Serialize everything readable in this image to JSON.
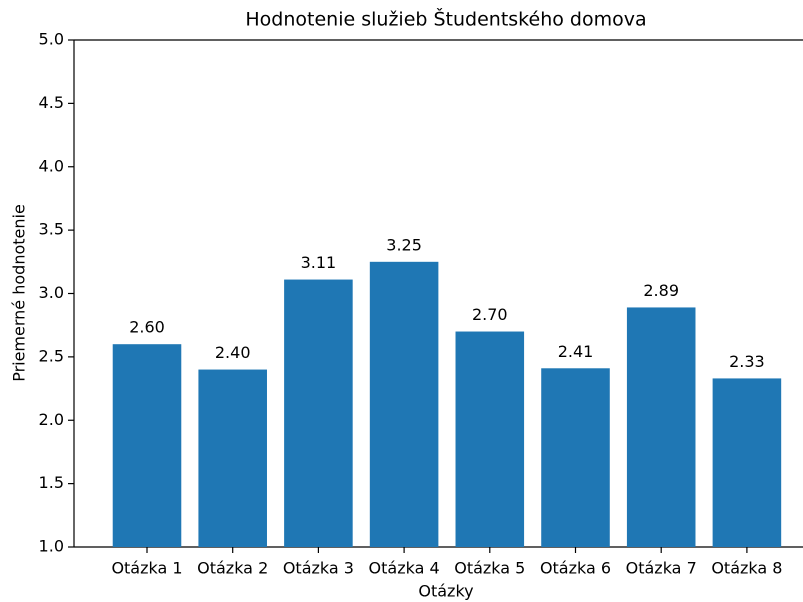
{
  "chart_data": {
    "type": "bar",
    "title": "Hodnotenie služieb Študentského domova",
    "x_label": "Otázky",
    "y_label": "Priemerné hodnotenie",
    "categories": [
      "Otázka 1",
      "Otázka 2",
      "Otázka 3",
      "Otázka 4",
      "Otázka 5",
      "Otázka 6",
      "Otázka 7",
      "Otázka 8"
    ],
    "values": [
      2.6,
      2.4,
      3.11,
      3.25,
      2.7,
      2.41,
      2.89,
      2.33
    ],
    "value_labels": [
      "2.60",
      "2.40",
      "3.11",
      "3.25",
      "2.70",
      "2.41",
      "2.89",
      "2.33"
    ],
    "color": "#1f77b4",
    "ylim": [
      1,
      5
    ],
    "yticks": [
      {
        "value": 1,
        "label": "1.0"
      },
      {
        "value": 1.5,
        "label": "1.5"
      },
      {
        "value": 2,
        "label": "2.0"
      },
      {
        "value": 2.5,
        "label": "2.5"
      },
      {
        "value": 3,
        "label": "3.0"
      },
      {
        "value": 3.5,
        "label": "3.5"
      },
      {
        "value": 4,
        "label": "4.0"
      },
      {
        "value": 4.5,
        "label": "4.5"
      },
      {
        "value": 5,
        "label": "5.0"
      }
    ],
    "grid": false
  }
}
